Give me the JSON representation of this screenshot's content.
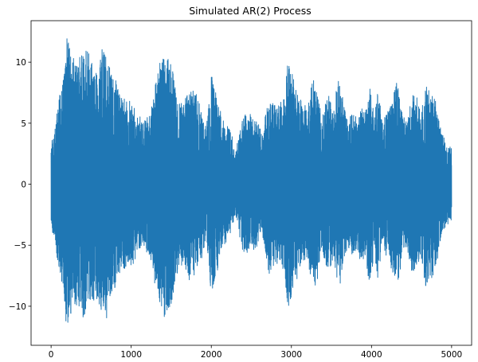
{
  "chart_data": {
    "type": "line",
    "title": "Simulated AR(2) Process",
    "xlabel": "",
    "ylabel": "",
    "xlim": [
      -250,
      5250
    ],
    "ylim": [
      -13.2,
      13.4
    ],
    "x_ticks": [
      0,
      1000,
      2000,
      3000,
      4000,
      5000
    ],
    "y_ticks": [
      10,
      5,
      0,
      -5,
      -10
    ],
    "x_tick_labels": [
      "0",
      "1000",
      "2000",
      "3000",
      "4000",
      "5000"
    ],
    "y_tick_labels": [
      "10",
      "5",
      "0",
      "−5",
      "−10"
    ],
    "grid": false,
    "legend": "none",
    "line_color": "#1f77b4",
    "series": [
      {
        "n_points": 5000,
        "x_range": [
          0,
          5000
        ],
        "envelope_x": [
          0,
          100,
          150,
          200,
          260,
          330,
          400,
          480,
          560,
          620,
          660,
          760,
          860,
          950,
          1050,
          1150,
          1230,
          1300,
          1360,
          1410,
          1450,
          1500,
          1560,
          1640,
          1720,
          1830,
          1940,
          2000,
          2060,
          2140,
          2240,
          2300,
          2400,
          2480,
          2560,
          2640,
          2720,
          2800,
          2870,
          2920,
          2960,
          3040,
          3120,
          3200,
          3260,
          3310,
          3380,
          3420,
          3470,
          3520,
          3580,
          3640,
          3700,
          3760,
          3820,
          3870,
          3920,
          3980,
          4040,
          4080,
          4140,
          4200,
          4260,
          4320,
          4380,
          4440,
          4500,
          4560,
          4620,
          4680,
          4740,
          4800,
          4860,
          4920,
          5000
        ],
        "envelope_y": [
          3.0,
          7.0,
          8.5,
          12.2,
          10.5,
          10.0,
          11.0,
          10.5,
          9.0,
          10.8,
          11.5,
          9.0,
          7.5,
          6.8,
          6.2,
          4.8,
          6.0,
          8.0,
          9.8,
          11.0,
          10.8,
          10.0,
          7.5,
          6.5,
          7.8,
          7.0,
          4.6,
          9.0,
          7.5,
          5.0,
          4.4,
          2.4,
          5.8,
          6.0,
          5.0,
          4.2,
          7.2,
          6.5,
          6.5,
          7.6,
          10.6,
          8.0,
          6.8,
          6.0,
          8.6,
          8.0,
          5.8,
          6.5,
          7.4,
          6.2,
          8.6,
          7.2,
          5.0,
          6.0,
          5.4,
          6.2,
          6.0,
          8.2,
          5.5,
          7.7,
          5.2,
          5.8,
          7.3,
          8.6,
          5.9,
          4.9,
          7.2,
          7.0,
          5.9,
          8.5,
          7.7,
          6.8,
          4.8,
          3.4,
          3.0
        ],
        "min_value": -12.1,
        "max_value": 12.2
      }
    ]
  }
}
